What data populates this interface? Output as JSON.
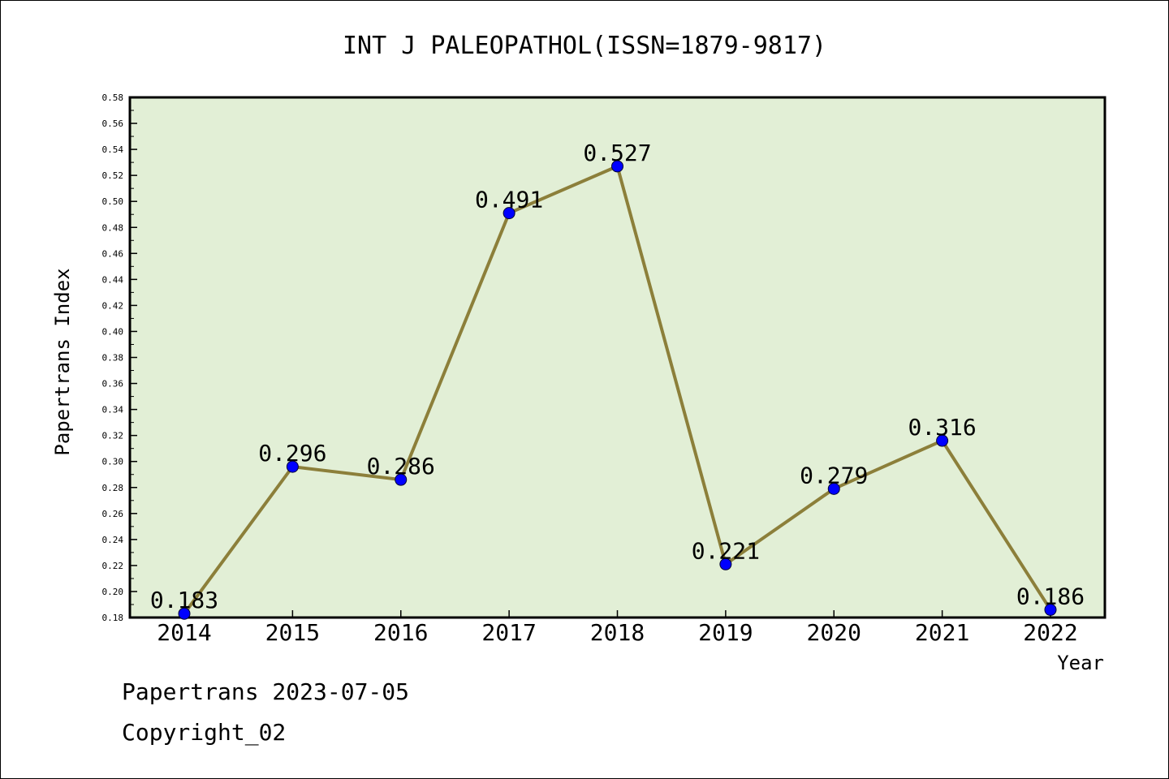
{
  "footer": {
    "line1": "Papertrans 2023-07-05",
    "line2": "Copyright_02"
  },
  "chart_data": {
    "type": "line",
    "title": "INT J PALEOPATHOL(ISSN=1879-9817)",
    "xlabel": "Year",
    "ylabel": "Papertrans Index",
    "categories": [
      "2014",
      "2015",
      "2016",
      "2017",
      "2018",
      "2019",
      "2020",
      "2021",
      "2022"
    ],
    "values": [
      0.183,
      0.296,
      0.286,
      0.491,
      0.527,
      0.221,
      0.279,
      0.316,
      0.186
    ],
    "data_labels": [
      "0.183",
      "0.296",
      "0.286",
      "0.491",
      "0.527",
      "0.221",
      "0.279",
      "0.316",
      "0.186"
    ],
    "ylim": [
      0.18,
      0.58
    ],
    "yticks": [
      "0.18",
      "0.20",
      "0.22",
      "0.24",
      "0.26",
      "0.28",
      "0.30",
      "0.32",
      "0.34",
      "0.36",
      "0.38",
      "0.40",
      "0.42",
      "0.44",
      "0.46",
      "0.48",
      "0.50",
      "0.52",
      "0.54",
      "0.56",
      "0.58"
    ],
    "grid": false,
    "colors": {
      "plot_background": "#e2efd6",
      "line": "#8c7f3a",
      "marker": "#0000ff"
    }
  }
}
